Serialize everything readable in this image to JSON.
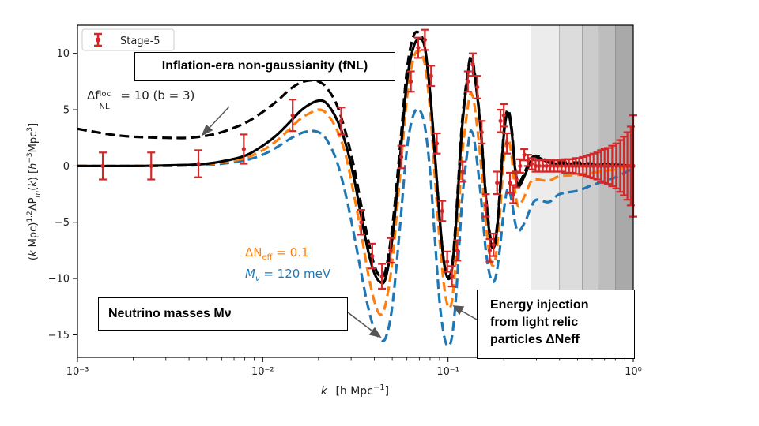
{
  "chart_data": {
    "type": "line",
    "xscale": "log",
    "xlim": [
      0.001,
      1.0
    ],
    "ylim": [
      -17,
      12.5
    ],
    "xlabel": "k  [h Mpc⁻¹]",
    "ylabel": "(k Mpc)¹ᐧ² ΔPₘ(k)  [h⁻³Mpc³]",
    "x_ticks": [
      0.001,
      0.01,
      0.1,
      1
    ],
    "x_tick_labels": [
      "10⁻³",
      "10⁻²",
      "10⁻¹",
      "10⁰"
    ],
    "y_ticks": [
      10,
      5,
      0,
      -5,
      -10,
      -15
    ],
    "y_tick_labels": [
      "10",
      "5",
      "0",
      "−5",
      "−10",
      "−15"
    ],
    "grid": false,
    "legend": {
      "position": "top-left",
      "entries": [
        "Stage-5"
      ]
    },
    "colors": {
      "black": "#000000",
      "orange": "#ff7f0e",
      "blue": "#1f77b4",
      "red": "#d62728",
      "bands": [
        "#ececec",
        "#dcdcdc",
        "#cccccc",
        "#bdbdbd",
        "#a9a9a9",
        "#939393"
      ]
    },
    "shaded_k_edges": [
      0.28,
      0.4,
      0.53,
      0.65,
      0.8,
      1.0
    ],
    "series": [
      {
        "style": "dashed",
        "color": "black",
        "x": [
          0.001,
          0.0015,
          0.002,
          0.003,
          0.004,
          0.005,
          0.006,
          0.008,
          0.01,
          0.012,
          0.014,
          0.016,
          0.018,
          0.02,
          0.022,
          0.025,
          0.028,
          0.031,
          0.034,
          0.037,
          0.04,
          0.043,
          0.046,
          0.05,
          0.055,
          0.06,
          0.065,
          0.07,
          0.075,
          0.08,
          0.085,
          0.09,
          0.095,
          0.1,
          0.105,
          0.11,
          0.115,
          0.12,
          0.13,
          0.135,
          0.14,
          0.15,
          0.16,
          0.17,
          0.18,
          0.19,
          0.2,
          0.21,
          0.22,
          0.23,
          0.24,
          0.26,
          0.28,
          0.3,
          0.35,
          0.4,
          0.5,
          0.6,
          0.8,
          1.0
        ],
        "y": [
          3.3,
          2.8,
          2.6,
          2.5,
          2.5,
          2.7,
          3.0,
          3.8,
          4.8,
          5.8,
          6.8,
          7.4,
          7.6,
          7.5,
          7.0,
          5.5,
          3.0,
          0.0,
          -3.5,
          -6.5,
          -8.8,
          -9.8,
          -9.3,
          -5.5,
          1.5,
          8.5,
          11.5,
          11.8,
          10.5,
          6.5,
          1.0,
          -4.5,
          -8.5,
          -9.8,
          -9.0,
          -5.0,
          0.0,
          4.5,
          9.2,
          9.5,
          8.0,
          3.5,
          -2.5,
          -6.5,
          -6.5,
          -2.5,
          3.0,
          5.0,
          3.5,
          0.0,
          -1.5,
          -0.5,
          0.6,
          0.9,
          0.4,
          0.3,
          0.3,
          0.2,
          0.1,
          0.0
        ]
      },
      {
        "style": "solid",
        "color": "black",
        "x": [
          0.001,
          0.002,
          0.003,
          0.004,
          0.005,
          0.006,
          0.008,
          0.01,
          0.012,
          0.014,
          0.016,
          0.018,
          0.02,
          0.022,
          0.025,
          0.028,
          0.031,
          0.034,
          0.037,
          0.04,
          0.043,
          0.046,
          0.05,
          0.055,
          0.06,
          0.065,
          0.07,
          0.075,
          0.08,
          0.085,
          0.09,
          0.095,
          0.1,
          0.105,
          0.11,
          0.115,
          0.12,
          0.13,
          0.135,
          0.14,
          0.15,
          0.16,
          0.17,
          0.18,
          0.19,
          0.2,
          0.21,
          0.22,
          0.23,
          0.24,
          0.26,
          0.28,
          0.3,
          0.35,
          0.4,
          0.5,
          0.6,
          0.8,
          1.0
        ],
        "y": [
          0.0,
          0.0,
          0.05,
          0.1,
          0.2,
          0.4,
          0.9,
          1.8,
          2.8,
          3.9,
          4.9,
          5.5,
          5.8,
          5.6,
          4.2,
          2.0,
          -1.0,
          -4.5,
          -7.5,
          -9.5,
          -10.3,
          -10.0,
          -6.5,
          0.5,
          7.5,
          10.5,
          11.3,
          10.5,
          6.5,
          1.0,
          -4.5,
          -8.5,
          -10.0,
          -9.2,
          -5.5,
          -0.5,
          4.0,
          9.0,
          9.3,
          7.8,
          3.3,
          -2.7,
          -6.8,
          -6.8,
          -2.8,
          2.7,
          4.7,
          3.2,
          -0.2,
          -1.8,
          -0.8,
          0.4,
          0.8,
          0.3,
          0.2,
          0.2,
          0.1,
          0.1,
          0.0
        ]
      },
      {
        "style": "dashed",
        "color": "orange",
        "label": "ΔN_eff = 0.1",
        "x": [
          0.001,
          0.002,
          0.003,
          0.004,
          0.005,
          0.006,
          0.008,
          0.01,
          0.012,
          0.014,
          0.016,
          0.018,
          0.02,
          0.022,
          0.025,
          0.028,
          0.031,
          0.034,
          0.037,
          0.04,
          0.043,
          0.046,
          0.05,
          0.055,
          0.06,
          0.065,
          0.07,
          0.075,
          0.08,
          0.085,
          0.09,
          0.095,
          0.1,
          0.105,
          0.11,
          0.115,
          0.12,
          0.13,
          0.135,
          0.14,
          0.15,
          0.16,
          0.17,
          0.18,
          0.19,
          0.2,
          0.21,
          0.22,
          0.23,
          0.24,
          0.26,
          0.28,
          0.3,
          0.35,
          0.4,
          0.5,
          0.6,
          0.8,
          1.0
        ],
        "y": [
          0.0,
          0.0,
          0.05,
          0.1,
          0.15,
          0.3,
          0.7,
          1.4,
          2.3,
          3.3,
          4.2,
          4.7,
          5.0,
          4.7,
          3.3,
          1.0,
          -2.5,
          -6.0,
          -9.5,
          -12.0,
          -13.2,
          -12.3,
          -8.5,
          -1.0,
          6.0,
          9.5,
          10.2,
          9.0,
          5.0,
          -1.0,
          -6.5,
          -10.5,
          -12.5,
          -12.0,
          -8.5,
          -3.0,
          1.5,
          6.0,
          6.3,
          5.0,
          0.5,
          -5.0,
          -8.5,
          -8.3,
          -4.5,
          0.5,
          2.5,
          1.0,
          -2.2,
          -3.6,
          -2.6,
          -1.4,
          -1.2,
          -1.3,
          -0.9,
          -0.8,
          -0.6,
          -0.3,
          0.0
        ]
      },
      {
        "style": "dashed",
        "color": "blue",
        "label": "Mν = 120 meV",
        "x": [
          0.001,
          0.002,
          0.003,
          0.004,
          0.005,
          0.006,
          0.008,
          0.01,
          0.012,
          0.014,
          0.016,
          0.018,
          0.02,
          0.022,
          0.025,
          0.028,
          0.031,
          0.034,
          0.037,
          0.04,
          0.043,
          0.046,
          0.05,
          0.055,
          0.06,
          0.065,
          0.07,
          0.075,
          0.08,
          0.085,
          0.09,
          0.095,
          0.1,
          0.105,
          0.11,
          0.115,
          0.12,
          0.13,
          0.135,
          0.14,
          0.15,
          0.16,
          0.17,
          0.18,
          0.19,
          0.2,
          0.21,
          0.22,
          0.23,
          0.24,
          0.26,
          0.28,
          0.3,
          0.35,
          0.4,
          0.5,
          0.6,
          0.8,
          1.0
        ],
        "y": [
          0.0,
          0.0,
          0.0,
          0.05,
          0.1,
          0.2,
          0.5,
          1.0,
          1.7,
          2.4,
          2.9,
          3.1,
          3.0,
          2.4,
          0.5,
          -2.5,
          -6.0,
          -9.5,
          -12.5,
          -14.5,
          -15.3,
          -15.3,
          -12.5,
          -5.5,
          1.5,
          4.5,
          5.0,
          3.5,
          -0.5,
          -6.5,
          -12.0,
          -15.0,
          -16.0,
          -15.2,
          -12.0,
          -7.0,
          -2.5,
          2.5,
          3.0,
          1.8,
          -2.5,
          -7.5,
          -10.0,
          -10.0,
          -7.5,
          -4.0,
          -2.0,
          -3.0,
          -5.0,
          -5.8,
          -5.0,
          -3.7,
          -3.0,
          -3.2,
          -2.5,
          -2.2,
          -1.7,
          -1.0,
          -0.2
        ]
      }
    ],
    "errorbars": {
      "label": "Stage-5",
      "x": [
        0.00137,
        0.0025,
        0.0045,
        0.0079,
        0.0145,
        0.0265,
        0.034,
        0.039,
        0.044,
        0.049,
        0.056,
        0.063,
        0.069,
        0.075,
        0.081,
        0.087,
        0.093,
        0.099,
        0.105,
        0.112,
        0.12,
        0.128,
        0.136,
        0.144,
        0.152,
        0.16,
        0.168,
        0.176,
        0.184,
        0.192,
        0.2,
        0.208,
        0.216,
        0.225,
        0.234,
        0.245,
        0.258,
        0.27,
        0.283,
        0.297,
        0.31,
        0.325,
        0.34,
        0.356,
        0.373,
        0.39,
        0.41,
        0.43,
        0.45,
        0.47,
        0.49,
        0.51,
        0.535,
        0.56,
        0.585,
        0.61,
        0.64,
        0.67,
        0.7,
        0.73,
        0.77,
        0.81,
        0.85,
        0.89,
        0.93,
        0.97,
        1.0
      ],
      "y": [
        0.0,
        0.0,
        0.2,
        1.5,
        4.5,
        4.0,
        -5.0,
        -8.0,
        -9.8,
        -7.5,
        0.8,
        7.5,
        10.5,
        11.2,
        8.0,
        2.0,
        -4.0,
        -8.5,
        -9.8,
        -7.5,
        -0.5,
        7.5,
        9.0,
        7.0,
        3.0,
        -3.5,
        -7.5,
        -7.0,
        -1.5,
        4.0,
        4.5,
        2.0,
        -1.5,
        -2.5,
        -1.2,
        0.0,
        1.0,
        0.5,
        0.2,
        0.0,
        0.0,
        0.0,
        0.0,
        0.0,
        0.0,
        0.0,
        0.0,
        0.0,
        0.0,
        0.0,
        0.0,
        0.0,
        0.0,
        0.0,
        0.0,
        0.0,
        0.0,
        0.0,
        0.0,
        0.0,
        0.0,
        0.0,
        0.0,
        0.0,
        0.0,
        0.0,
        0.0
      ],
      "err": [
        1.2,
        1.2,
        1.2,
        1.3,
        1.4,
        1.2,
        1.1,
        1.1,
        1.1,
        1.1,
        1.0,
        0.9,
        0.9,
        0.9,
        0.9,
        0.9,
        0.9,
        0.9,
        0.9,
        0.9,
        0.9,
        0.9,
        1.0,
        1.0,
        1.0,
        1.0,
        1.0,
        1.0,
        1.0,
        1.0,
        1.0,
        0.9,
        0.9,
        0.8,
        0.7,
        0.6,
        0.5,
        0.5,
        0.5,
        0.5,
        0.5,
        0.5,
        0.5,
        0.5,
        0.5,
        0.5,
        0.5,
        0.6,
        0.6,
        0.6,
        0.7,
        0.7,
        0.8,
        0.9,
        1.0,
        1.1,
        1.2,
        1.4,
        1.5,
        1.6,
        1.8,
        2.0,
        2.3,
        2.6,
        3.0,
        3.5,
        4.5
      ]
    }
  },
  "annotations": {
    "fnl_callout": "Inflation-era non-gaussianity (fNL)",
    "fnl_label_prefix": "Δf",
    "fnl_label_sup": "loc",
    "fnl_label_sub": "NL",
    "fnl_label_value": " = 10  (b = 3)",
    "neff_label": "ΔN",
    "neff_sub": "eff",
    "neff_value": " = 0.1",
    "mnu_label": "M",
    "mnu_sub": "ν",
    "mnu_value": " = 120 meV",
    "neutrino_callout": "Neutrino masses Mν",
    "energy_callout_line1": "Energy injection",
    "energy_callout_line2": "from light relic",
    "energy_callout_line3": "particles ΔNeff"
  },
  "axis_text": {
    "xlabel_k": "k",
    "xlabel_units": "[h Mpc",
    "xlabel_exp": "−1",
    "ylabel": "(k Mpc)^1.2 ΔP_m(k)  [h^-3 Mpc^3]"
  }
}
